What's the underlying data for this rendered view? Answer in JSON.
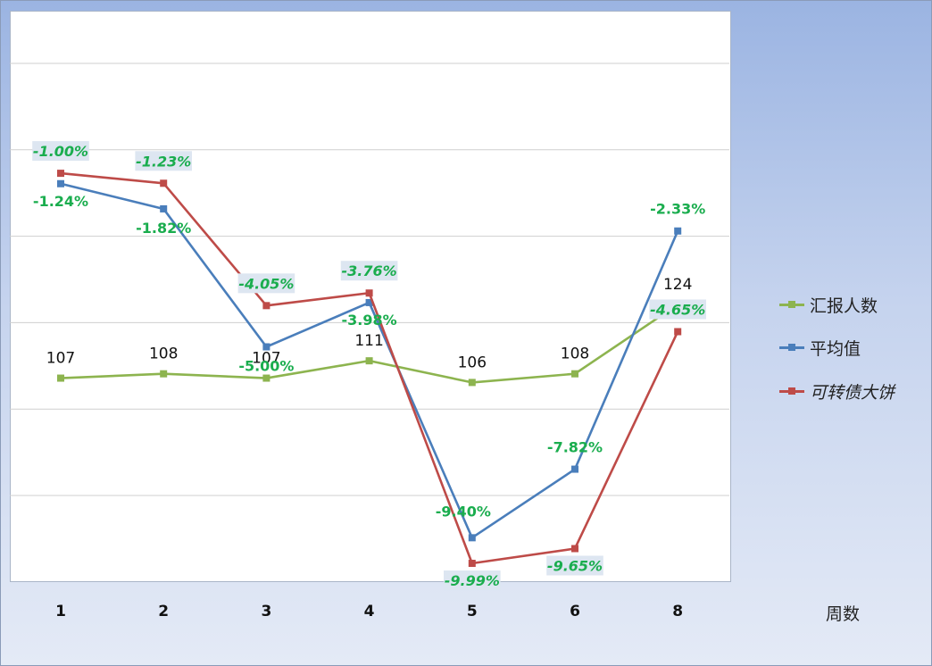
{
  "chart_data": {
    "type": "line",
    "categories": [
      "1",
      "2",
      "3",
      "4",
      "5",
      "6",
      "8"
    ],
    "xlabel": "周数",
    "grid": true,
    "legend_position": "right",
    "primary_axis": {
      "ylim": [
        -12,
        1
      ],
      "tick_step": 2,
      "tick_labels_shown": false
    },
    "secondary_axis": {
      "ylim": [
        60,
        140
      ],
      "tick_labels_shown": false
    },
    "series": [
      {
        "name": "汇报人数",
        "axis": "secondary",
        "color": "#8db44f",
        "values": [
          107,
          108,
          107,
          111,
          106,
          108,
          124
        ],
        "labels": [
          "107",
          "108",
          "107",
          "111",
          "106",
          "108",
          "124"
        ]
      },
      {
        "name": "平均值",
        "axis": "primary",
        "color": "#4a7ebb",
        "values": [
          -1.24,
          -1.82,
          -5.0,
          -3.98,
          -9.4,
          -7.82,
          -2.33
        ],
        "labels": [
          "-1.24%",
          "-1.82%",
          "-5.00%",
          "-3.98%",
          "-9.40%",
          "-7.82%",
          "-2.33%"
        ]
      },
      {
        "name": "可转债大饼",
        "axis": "primary",
        "color": "#be4b48",
        "italic": true,
        "values": [
          -1.0,
          -1.23,
          -4.05,
          -3.76,
          -9.99,
          -9.65,
          -4.65
        ],
        "labels": [
          "-1.00%",
          "-1.23%",
          "-4.05%",
          "-3.76%",
          "-9.99%",
          "-9.65%",
          "-4.65%"
        ]
      }
    ],
    "data_label_color": "#1aad4e"
  }
}
